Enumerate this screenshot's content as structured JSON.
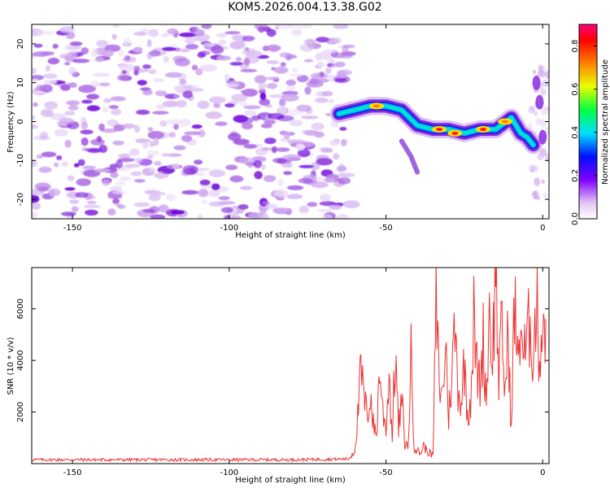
{
  "title": "KOM5.2026.004.13.38.G02",
  "chart_data": [
    {
      "type": "heatmap",
      "title": "KOM5.2026.004.13.38.G02",
      "xlabel": "Height of straight line (km)",
      "ylabel": "Frequency (Hz)",
      "xlim": [
        -163,
        2
      ],
      "ylim": [
        -25,
        25
      ],
      "xticks": [
        -150,
        -100,
        -50,
        0
      ],
      "yticks": [
        -20,
        -10,
        0,
        10,
        20
      ],
      "xtick_labels": [
        "-150",
        "-100",
        "-50",
        "0"
      ],
      "ytick_labels": [
        "-20",
        "-10",
        "0",
        "10",
        "20"
      ],
      "noise_region_x": [
        -163,
        -63
      ],
      "signal_trace": {
        "x": [
          -65,
          -60,
          -55,
          -50,
          -45,
          -40,
          -35,
          -30,
          -25,
          -20,
          -15,
          -10,
          -7,
          -5,
          -3
        ],
        "y": [
          2,
          3,
          4,
          4,
          3,
          -1,
          -2,
          -2,
          -3,
          -2,
          -2,
          1,
          -3,
          -4,
          -6
        ]
      },
      "colorbar": {
        "label": "Normalized spectral amplitude",
        "range": [
          0.0,
          0.9
        ],
        "ticks": [
          0.0,
          0.2,
          0.4,
          0.6,
          0.8
        ],
        "tick_labels": [
          "0.0",
          "0.2",
          "0.4",
          "0.6",
          "0.8"
        ]
      }
    },
    {
      "type": "line",
      "xlabel": "Height of straight line (km)",
      "ylabel": "SNR (10 * v/v)",
      "xlim": [
        -163,
        2
      ],
      "ylim": [
        0,
        7600
      ],
      "xticks": [
        -150,
        -100,
        -50,
        0
      ],
      "yticks": [
        2000,
        4000,
        6000
      ],
      "xtick_labels": [
        "-150",
        "-100",
        "-50",
        "0"
      ],
      "ytick_labels": [
        "2000",
        "4000",
        "6000"
      ],
      "color": "#ee3333",
      "series": [
        {
          "name": "SNR",
          "x": [
            -163,
            -120,
            -80,
            -62,
            -60,
            -59,
            -58,
            -57,
            -56,
            -55,
            -54,
            -53,
            -52,
            -51,
            -50,
            -49,
            -48,
            -47,
            -46,
            -45,
            -44,
            -43,
            -42,
            -41,
            -40,
            -39,
            -38,
            -37,
            -36,
            -35,
            -34,
            -33,
            -32,
            -31,
            -30,
            -29,
            -28,
            -27,
            -26,
            -25,
            -24,
            -23,
            -22,
            -21,
            -20,
            -19,
            -18,
            -17,
            -16,
            -15,
            -14,
            -13,
            -12,
            -11,
            -10,
            -9,
            -8,
            -7,
            -6,
            -5,
            -4,
            -3,
            -2,
            -1,
            0,
            1
          ],
          "y": [
            150,
            150,
            150,
            180,
            500,
            1800,
            3600,
            2500,
            1800,
            2800,
            1500,
            1100,
            3800,
            2000,
            1400,
            3500,
            1000,
            4400,
            1300,
            2500,
            800,
            600,
            4100,
            700,
            500,
            400,
            700,
            500,
            400,
            300,
            6100,
            3200,
            2500,
            4800,
            1800,
            3500,
            5300,
            3000,
            2400,
            3900,
            2000,
            2500,
            5600,
            3600,
            3100,
            4800,
            2500,
            6000,
            4100,
            7600,
            3300,
            5200,
            2700,
            5100,
            1200,
            6500,
            3800,
            5600,
            4100,
            4600,
            5600,
            4200,
            6300,
            4100,
            5600,
            5600
          ]
        }
      ]
    }
  ]
}
